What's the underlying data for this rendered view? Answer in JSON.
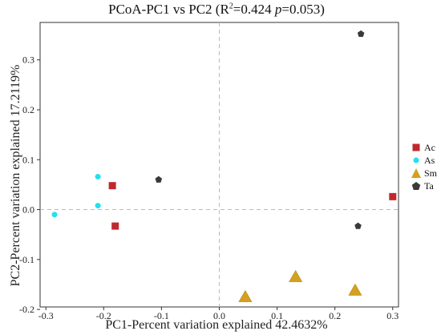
{
  "chart_data": {
    "type": "scatter",
    "title": {
      "prefix": "PCoA-PC1 vs PC2 (R",
      "sup": "2",
      "mid": "=0.424 ",
      "p_symbol": "p",
      "suffix": "=0.053)"
    },
    "xlabel": "PC1-Percent variation explained 42.4632%",
    "ylabel": "PC2-Percent variation explained 17.2119%",
    "xlim": [
      -0.31,
      0.31
    ],
    "ylim": [
      -0.195,
      0.375
    ],
    "xticks": [
      -0.3,
      -0.2,
      -0.1,
      0.0,
      0.1,
      0.2,
      0.3
    ],
    "xtick_labels": [
      "-0.3",
      "-0.2",
      "-0.1",
      "0.0",
      "0.1",
      "0.2",
      "0.3"
    ],
    "yticks": [
      -0.2,
      -0.1,
      0.0,
      0.1,
      0.2,
      0.3
    ],
    "ytick_labels": [
      "-0.2",
      "-0.1",
      "0.0",
      "0.1",
      "0.2",
      "0.3"
    ],
    "reference_lines": {
      "x": 0,
      "y": 0,
      "style": "dashed"
    },
    "grid": false,
    "legend_position": "right",
    "series": [
      {
        "name": "Ac",
        "marker": "square",
        "color": "#c0282e",
        "points": [
          [
            -0.185,
            0.048
          ],
          [
            -0.18,
            -0.033
          ],
          [
            0.3,
            0.026
          ]
        ]
      },
      {
        "name": "As",
        "marker": "circle",
        "color": "#22e0ef",
        "points": [
          [
            -0.21,
            0.066
          ],
          [
            -0.21,
            0.008
          ],
          [
            -0.285,
            -0.01
          ]
        ]
      },
      {
        "name": "Sm",
        "marker": "triangle",
        "color": "#d4a020",
        "points": [
          [
            0.045,
            -0.175
          ],
          [
            0.132,
            -0.135
          ],
          [
            0.235,
            -0.162
          ]
        ]
      },
      {
        "name": "Ta",
        "marker": "pentagon",
        "color": "#3a3a3a",
        "points": [
          [
            -0.105,
            0.06
          ],
          [
            0.245,
            0.352
          ],
          [
            0.24,
            -0.033
          ]
        ]
      }
    ]
  }
}
